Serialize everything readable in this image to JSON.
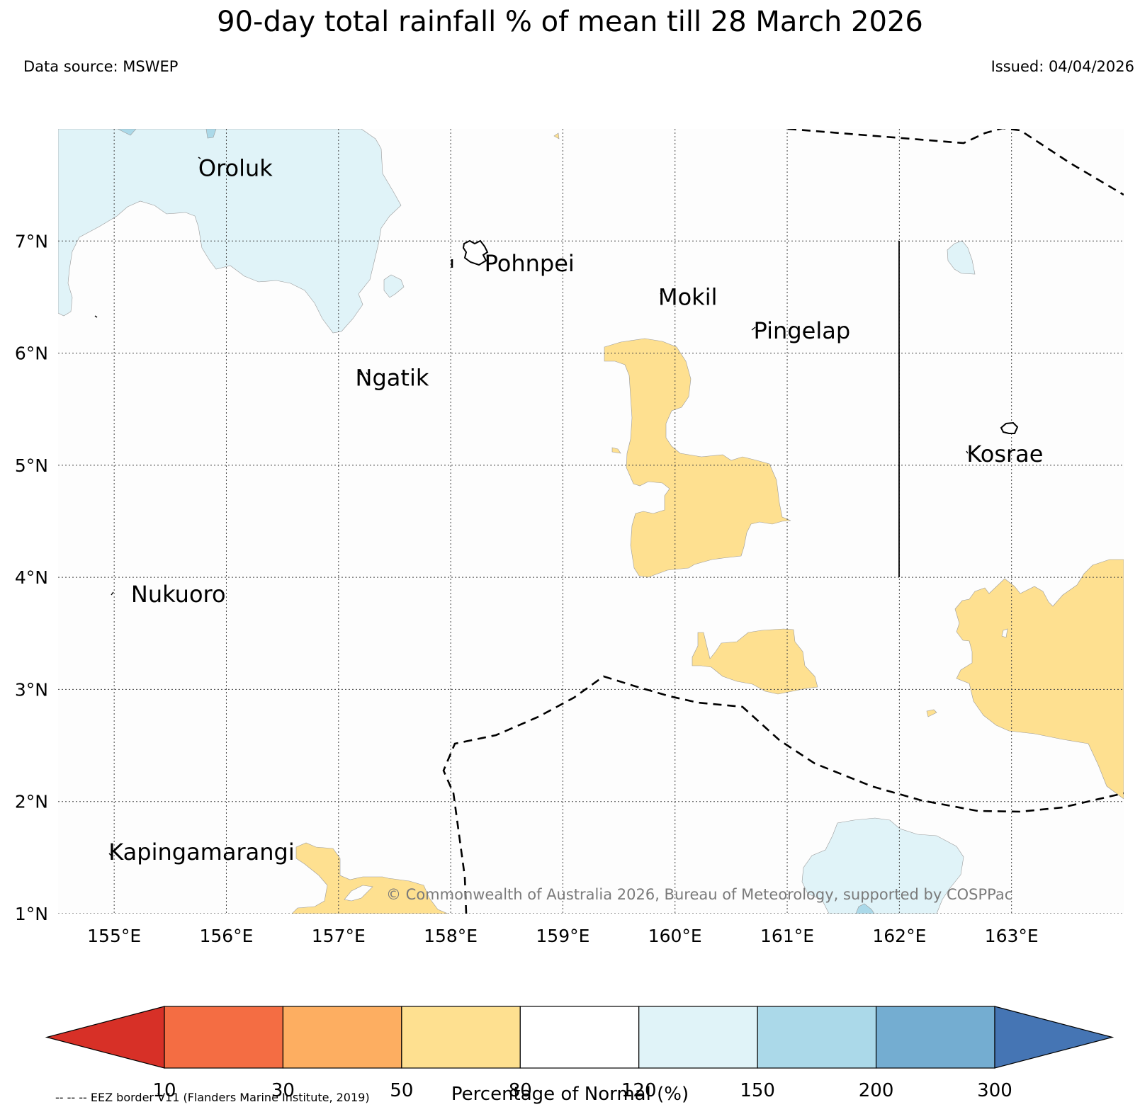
{
  "header": {
    "title": "90-day total rainfall % of mean till 28 March 2026",
    "data_source": "Data source: MSWEP",
    "issued": "Issued: 04/04/2026"
  },
  "map": {
    "lon_range": [
      154.5,
      164.0
    ],
    "lat_range": [
      1.0,
      8.0
    ],
    "lon_ticks": [
      155,
      156,
      157,
      158,
      159,
      160,
      161,
      162,
      163
    ],
    "lon_tick_labels": [
      "155°E",
      "156°E",
      "157°E",
      "158°E",
      "159°E",
      "160°E",
      "161°E",
      "162°E",
      "163°E"
    ],
    "lat_ticks": [
      1,
      2,
      3,
      4,
      5,
      6,
      7
    ],
    "lat_tick_labels": [
      "1°N",
      "2°N",
      "3°N",
      "4°N",
      "5°N",
      "6°N",
      "7°N"
    ],
    "places": [
      {
        "name": "Oroluk",
        "lon": 155.75,
        "lat": 7.65
      },
      {
        "name": "Pohnpei",
        "lon": 158.3,
        "lat": 6.8
      },
      {
        "name": "Mokil",
        "lon": 159.85,
        "lat": 6.5
      },
      {
        "name": "Pingelap",
        "lon": 160.7,
        "lat": 6.2
      },
      {
        "name": "Ngatik",
        "lon": 157.15,
        "lat": 5.78
      },
      {
        "name": "Kosrae",
        "lon": 162.6,
        "lat": 5.1
      },
      {
        "name": "Nukuoro",
        "lon": 155.15,
        "lat": 3.85
      },
      {
        "name": "Kapingamarangi",
        "lon": 154.95,
        "lat": 1.55
      }
    ],
    "copyright": "© Commonwealth of Australia 2026, Bureau of Meteorology, supported by COSPPac"
  },
  "colorbar": {
    "label": "Percentage of Normal (%)",
    "boundaries": [
      "10",
      "30",
      "50",
      "80",
      "120",
      "150",
      "200",
      "300"
    ],
    "colors": [
      "#d73027",
      "#f46d43",
      "#fdae61",
      "#fee090",
      "#ffffff",
      "#e0f3f8",
      "#abd9e9",
      "#74add1",
      "#4575b4"
    ]
  },
  "legend_note": "-- -- -- EEZ border V11 (Flanders Marine Institute, 2019)",
  "colors": {
    "dry_80_120_below": "#fee090",
    "wet_120_150": "#e0f3f8",
    "wet_150_200": "#abd9e9"
  }
}
